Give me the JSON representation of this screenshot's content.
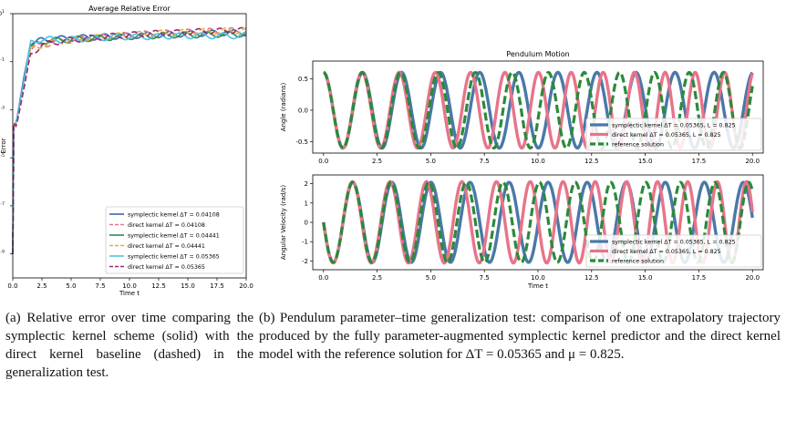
{
  "chart_data": [
    {
      "type": "line",
      "title": "Average Relative Error",
      "xlabel": "Time t",
      "ylabel": "Error",
      "yscale": "log",
      "xlim": [
        0,
        20
      ],
      "ylim": [
        1e-10,
        10
      ],
      "x_ticks": [
        "0.0",
        "2.5",
        "5.0",
        "7.5",
        "10.0",
        "12.5",
        "15.0",
        "17.5",
        "20.0"
      ],
      "y_ticks": [
        "10^-9",
        "10^-7",
        "10^-5",
        "10^-3",
        "10^-1",
        "10^1"
      ],
      "legend_position": "bottom-right",
      "series": [
        {
          "name": "symplectic kernel ΔT = 0.04108",
          "color": "#3a66a8",
          "style": "solid",
          "x": [
            0,
            0.05,
            0.3,
            1.0,
            1.5,
            2.5,
            4,
            6,
            8,
            10,
            12,
            14,
            16,
            18,
            20
          ],
          "values": [
            1e-09,
            0.0002,
            0.0003,
            0.03,
            0.5,
            0.8,
            0.9,
            1.0,
            1.1,
            1.2,
            1.3,
            1.4,
            1.5,
            1.6,
            1.6
          ]
        },
        {
          "name": "direct kernel ΔT = 0.04108",
          "color": "#e8748a",
          "style": "dashed",
          "x": [
            0,
            0.05,
            0.3,
            1.0,
            1.5,
            2.5,
            4,
            6,
            8,
            10,
            12,
            14,
            16,
            18,
            20
          ],
          "values": [
            1e-09,
            0.0003,
            0.0002,
            0.01,
            0.3,
            0.5,
            0.7,
            0.9,
            1.1,
            1.3,
            1.5,
            1.6,
            1.8,
            1.9,
            2.0
          ]
        },
        {
          "name": "symplectic kernel ΔT = 0.04441",
          "color": "#2e8b57",
          "style": "solid",
          "x": [
            0,
            0.05,
            0.3,
            1.0,
            1.5,
            2.5,
            4,
            6,
            8,
            10,
            12,
            14,
            16,
            18,
            20
          ],
          "values": [
            1e-09,
            0.0002,
            0.0003,
            0.02,
            0.4,
            0.7,
            0.8,
            0.9,
            1.0,
            1.1,
            1.2,
            1.3,
            1.3,
            1.4,
            1.4
          ]
        },
        {
          "name": "direct kernel ΔT = 0.04441",
          "color": "#e0b23a",
          "style": "dashed",
          "x": [
            0,
            0.05,
            0.3,
            1.0,
            1.5,
            2.5,
            4,
            6,
            8,
            10,
            12,
            14,
            16,
            18,
            20
          ],
          "values": [
            1e-09,
            0.0003,
            0.0002,
            0.01,
            0.3,
            0.5,
            0.7,
            0.9,
            1.1,
            1.3,
            1.5,
            1.6,
            1.8,
            1.9,
            2.0
          ]
        },
        {
          "name": "symplectic kernel ΔT = 0.05365",
          "color": "#4cc3e6",
          "style": "solid",
          "x": [
            0,
            0.05,
            0.3,
            1.0,
            1.5,
            2.5,
            4,
            6,
            8,
            10,
            12,
            14,
            16,
            18,
            20
          ],
          "values": [
            1e-09,
            0.0002,
            0.0003,
            0.02,
            0.6,
            0.9,
            0.8,
            0.9,
            1.0,
            1.1,
            1.1,
            1.2,
            1.2,
            1.2,
            1.2
          ]
        },
        {
          "name": "direct kernel ΔT = 0.05365",
          "color": "#9a2a6e",
          "style": "dashed",
          "x": [
            0,
            0.05,
            0.3,
            1.0,
            1.5,
            2.5,
            4,
            6,
            8,
            10,
            12,
            14,
            16,
            18,
            20
          ],
          "values": [
            1e-09,
            0.0003,
            0.0002,
            0.01,
            0.2,
            0.5,
            0.7,
            0.9,
            1.1,
            1.3,
            1.5,
            1.6,
            1.8,
            1.9,
            2.0
          ]
        }
      ]
    },
    {
      "type": "line",
      "title": "Pendulum Motion",
      "xlabel": "",
      "ylabel": "Angle (radians)",
      "xlim": [
        -0.5,
        20.5
      ],
      "ylim": [
        -0.68,
        0.78
      ],
      "x_ticks": [
        "0.0",
        "2.5",
        "5.0",
        "7.5",
        "10.0",
        "12.5",
        "15.0",
        "17.5",
        "20.0"
      ],
      "y_ticks": [
        "-0.5",
        "0.0",
        "0.5"
      ],
      "legend_position": "bottom-right",
      "series": [
        {
          "name": "symplectic kernel ΔT = 0.05365, L = 0.825",
          "color": "#4a78a8",
          "style": "solid",
          "amplitude": 0.6,
          "omega": 3.45,
          "drift": 0.0,
          "phase": 1.5708
        },
        {
          "name": "direct kernel ΔT = 0.05365, L = 0.825",
          "color": "#e8748a",
          "style": "solid",
          "amplitude": 0.6,
          "omega": 3.45,
          "drift": 0.009,
          "phase": 1.5708
        },
        {
          "name": "reference solution",
          "color": "#2a8a3a",
          "style": "dashed",
          "amplitude": 0.6,
          "omega": 3.45,
          "drift": 0.004,
          "phase": 1.5708
        }
      ]
    },
    {
      "type": "line",
      "title": "",
      "xlabel": "Time t",
      "ylabel": "Angular Velocity (rad/s)",
      "xlim": [
        -0.5,
        20.5
      ],
      "ylim": [
        -2.45,
        2.45
      ],
      "x_ticks": [
        "0.0",
        "2.5",
        "5.0",
        "7.5",
        "10.0",
        "12.5",
        "15.0",
        "17.5",
        "20.0"
      ],
      "y_ticks": [
        "-2",
        "-1",
        "0",
        "1",
        "2"
      ],
      "legend_position": "bottom-right",
      "series": [
        {
          "name": "symplectic kernel ΔT = 0.05365, L = 0.825",
          "color": "#4a78a8",
          "style": "solid",
          "amplitude": 2.07,
          "omega": 3.45,
          "drift": 0.0,
          "phase": 3.1416
        },
        {
          "name": "direct kernel ΔT = 0.05365, L = 0.825",
          "color": "#e8748a",
          "style": "solid",
          "amplitude": 2.1,
          "omega": 3.45,
          "drift": 0.009,
          "phase": 3.1416
        },
        {
          "name": "reference solution",
          "color": "#2a8a3a",
          "style": "dashed",
          "amplitude": 2.07,
          "omega": 3.45,
          "drift": 0.004,
          "phase": 3.1416
        }
      ]
    }
  ],
  "captions": {
    "a": "(a) Relative error over time comparing the symplectic kernel scheme (solid) with the direct kernel baseline (dashed) in the generalization test.",
    "b": "(b) Pendulum parameter–time generalization test: comparison of one extrapolatory trajectory produced by the fully parameter-augmented symplectic kernel predictor and the direct kernel model with the reference solution for ΔT = 0.05365 and μ = 0.825."
  }
}
